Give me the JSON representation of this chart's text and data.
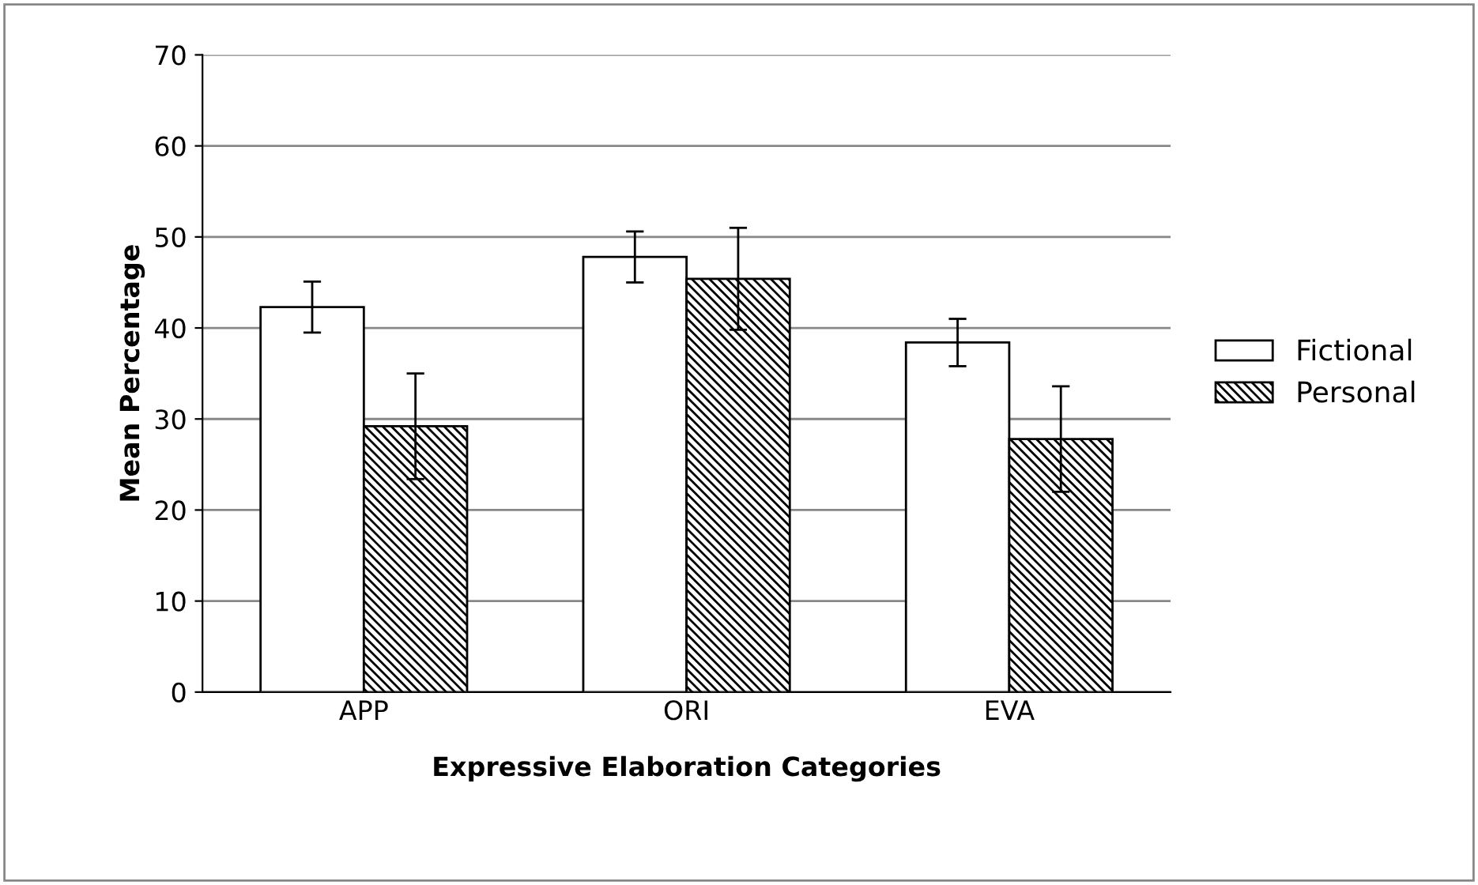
{
  "chart_data": {
    "type": "bar",
    "xlabel": "Expressive Elaboration Categories",
    "ylabel": "Mean Percentage",
    "categories": [
      "APP",
      "ORI",
      "EVA"
    ],
    "series": [
      {
        "name": "Fictional",
        "color": "#ffffff",
        "values": [
          42.3,
          47.8,
          38.4
        ],
        "errors": [
          2.8,
          2.8,
          2.6
        ]
      },
      {
        "name": "Personal",
        "color": "#000000",
        "values": [
          29.2,
          45.4,
          27.8
        ],
        "errors": [
          5.8,
          5.6,
          5.8
        ]
      }
    ],
    "ylim": [
      0,
      70
    ],
    "yticks": [
      0,
      10,
      20,
      30,
      40,
      50,
      60,
      70
    ],
    "grid": "y",
    "legend": "right"
  }
}
